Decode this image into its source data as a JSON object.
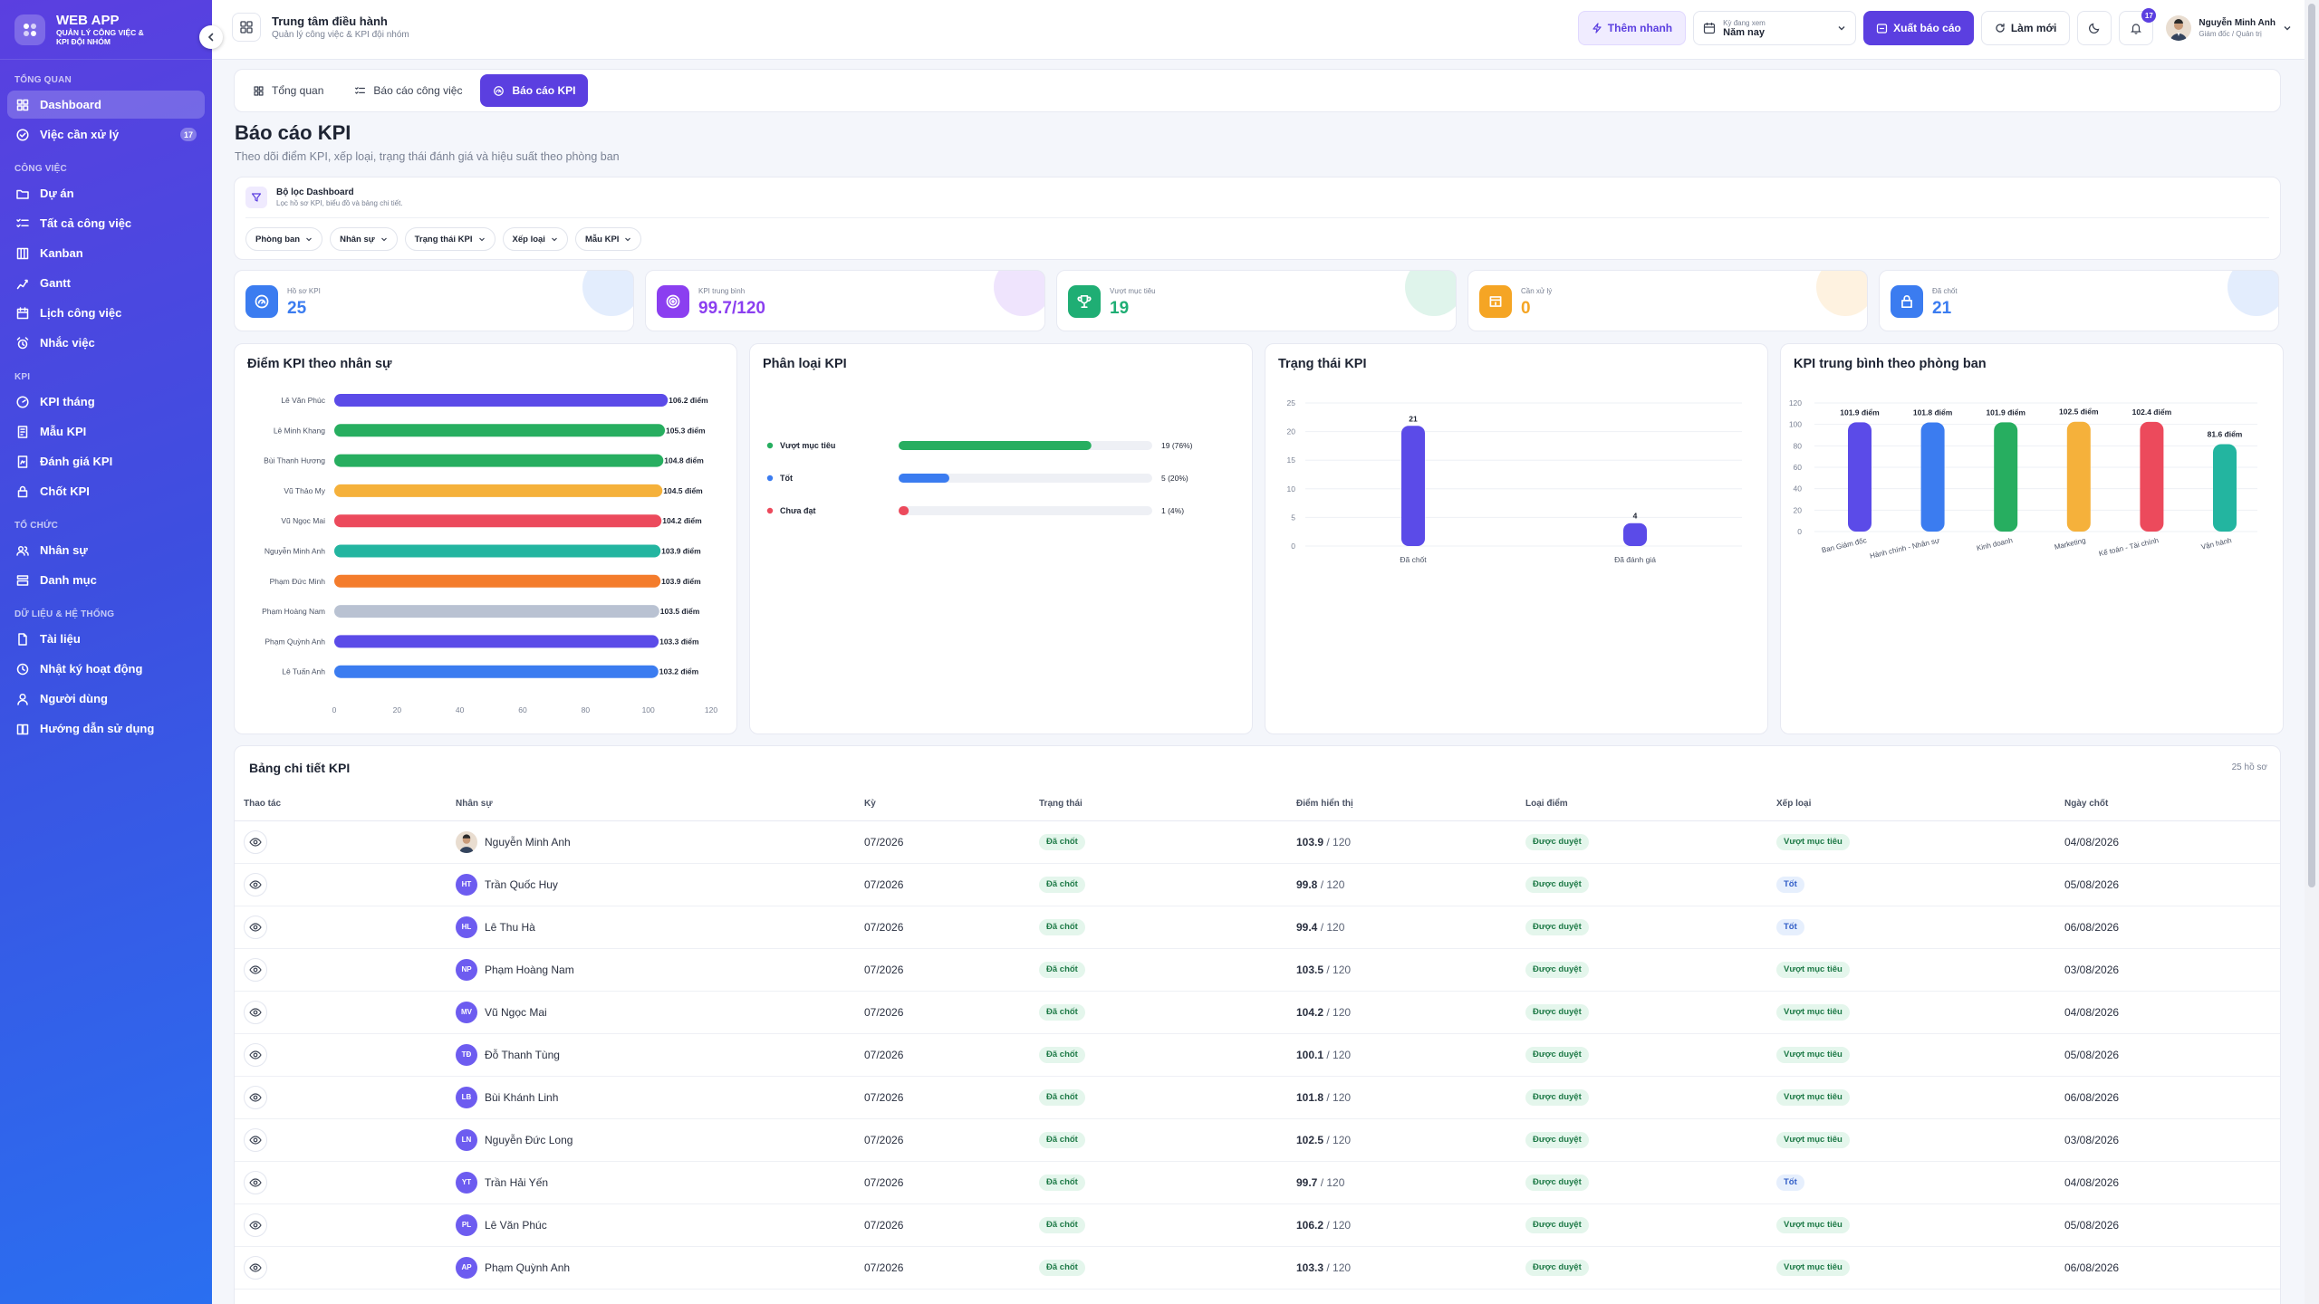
{
  "brand": {
    "title": "WEB APP",
    "subtitle": "QUẢN LÝ CÔNG VIỆC & KPI ĐỘI NHÓM"
  },
  "sidebar": {
    "sections": [
      {
        "title": "TỔNG QUAN",
        "items": [
          {
            "label": "Dashboard",
            "icon": "dashboard-icon",
            "active": true
          },
          {
            "label": "Việc cần xử lý",
            "icon": "check-circle-icon",
            "badge": "17"
          }
        ]
      },
      {
        "title": "CÔNG VIỆC",
        "items": [
          {
            "label": "Dự án",
            "icon": "folder-icon"
          },
          {
            "label": "Tất cả công việc",
            "icon": "list-check-icon"
          },
          {
            "label": "Kanban",
            "icon": "kanban-icon"
          },
          {
            "label": "Gantt",
            "icon": "gantt-icon"
          },
          {
            "label": "Lịch công việc",
            "icon": "calendar-icon"
          },
          {
            "label": "Nhắc việc",
            "icon": "alarm-icon"
          }
        ]
      },
      {
        "title": "KPI",
        "items": [
          {
            "label": "KPI tháng",
            "icon": "gauge-icon"
          },
          {
            "label": "Mẫu KPI",
            "icon": "template-icon"
          },
          {
            "label": "Đánh giá KPI",
            "icon": "rating-icon"
          },
          {
            "label": "Chốt KPI",
            "icon": "lock-icon"
          }
        ]
      },
      {
        "title": "TỔ CHỨC",
        "items": [
          {
            "label": "Nhân sự",
            "icon": "users-icon"
          },
          {
            "label": "Danh mục",
            "icon": "category-icon"
          }
        ]
      },
      {
        "title": "DỮ LIỆU & HỆ THỐNG",
        "items": [
          {
            "label": "Tài liệu",
            "icon": "document-icon"
          },
          {
            "label": "Nhật ký hoạt động",
            "icon": "history-icon"
          },
          {
            "label": "Người dùng",
            "icon": "user-icon"
          },
          {
            "label": "Hướng dẫn sử dụng",
            "icon": "book-icon"
          }
        ]
      }
    ]
  },
  "topbar": {
    "title": "Trung tâm điều hành",
    "subtitle": "Quản lý công việc & KPI đội nhóm",
    "quick_add": "Thêm nhanh",
    "period_label": "Kỳ đang xem",
    "period_value": "Năm nay",
    "export": "Xuất báo cáo",
    "refresh": "Làm mới",
    "notif_count": "17",
    "user_name": "Nguyễn Minh Anh",
    "user_role": "Giám đốc / Quản trị"
  },
  "tabs": [
    {
      "label": "Tổng quan",
      "icon": "overview-icon"
    },
    {
      "label": "Báo cáo công việc",
      "icon": "task-report-icon"
    },
    {
      "label": "Báo cáo KPI",
      "icon": "kpi-report-icon",
      "active": true
    }
  ],
  "page": {
    "title": "Báo cáo KPI",
    "subtitle": "Theo dõi điểm KPI, xếp loại, trạng thái đánh giá và hiệu suất theo phòng ban"
  },
  "filter": {
    "title": "Bộ lọc Dashboard",
    "subtitle": "Lọc hồ sơ KPI, biểu đồ và bảng chi tiết.",
    "chips": [
      "Phòng ban",
      "Nhân sự",
      "Trạng thái KPI",
      "Xếp loại",
      "Mẫu KPI"
    ]
  },
  "stats": [
    {
      "label": "Hồ sơ KPI",
      "value": "25",
      "color": "#3b7cf0",
      "icon": "kpi-file-icon"
    },
    {
      "label": "KPI trung bình",
      "value": "99.7/120",
      "color": "#8b3ff0",
      "icon": "target-icon"
    },
    {
      "label": "Vượt mục tiêu",
      "value": "19",
      "color": "#1fae74",
      "icon": "trophy-icon"
    },
    {
      "label": "Cần xử lý",
      "value": "0",
      "color": "#f5a524",
      "icon": "pending-icon"
    },
    {
      "label": "Đã chốt",
      "value": "21",
      "color": "#3b7cf0",
      "icon": "lock-icon"
    }
  ],
  "panels": {
    "p1": "Điểm KPI theo nhân sự",
    "p2": "Phân loại KPI",
    "p3": "Trạng thái KPI",
    "p4": "KPI trung bình theo phòng ban"
  },
  "chart_data": [
    {
      "type": "bar",
      "orientation": "horizontal",
      "title": "Điểm KPI theo nhân sự",
      "categories": [
        "Lê Văn Phúc",
        "Lê Minh Khang",
        "Bùi Thanh Hương",
        "Vũ Thảo My",
        "Vũ Ngọc Mai",
        "Nguyễn Minh Anh",
        "Phạm Đức Minh",
        "Phạm Hoàng Nam",
        "Phạm Quỳnh Anh",
        "Lê Tuấn Anh"
      ],
      "values": [
        106.2,
        105.3,
        104.8,
        104.5,
        104.2,
        103.9,
        103.9,
        103.5,
        103.3,
        103.2
      ],
      "value_suffix": " điểm",
      "colors": [
        "#5b4be8",
        "#27ae60",
        "#27ae60",
        "#f5b13b",
        "#ec4a5c",
        "#23b5a0",
        "#f47c2c",
        "#b9c2d2",
        "#5b4be8",
        "#3b7cf0"
      ],
      "xlim": [
        0,
        120
      ],
      "xticks": [
        0,
        20,
        40,
        60,
        80,
        100,
        120
      ]
    },
    {
      "type": "bar",
      "orientation": "horizontal",
      "title": "Phân loại KPI",
      "categories": [
        "Vượt mục tiêu",
        "Tốt",
        "Chưa đạt"
      ],
      "values": [
        19,
        5,
        1
      ],
      "labels": [
        "19 (76%)",
        "5 (20%)",
        "1 (4%)"
      ],
      "total": 25,
      "colors": [
        "#27ae60",
        "#3b7cf0",
        "#ec4a5c"
      ]
    },
    {
      "type": "bar",
      "title": "Trạng thái KPI",
      "categories": [
        "Đã chốt",
        "Đã đánh giá"
      ],
      "values": [
        21,
        4
      ],
      "ylim": [
        0,
        25
      ],
      "yticks": [
        0,
        5,
        10,
        15,
        20,
        25
      ],
      "color": "#5b4be8"
    },
    {
      "type": "bar",
      "title": "KPI trung bình theo phòng ban",
      "categories": [
        "Ban Giám đốc",
        "Hành chính - Nhân sự",
        "Kinh doanh",
        "Marketing",
        "Kế toán - Tài chính",
        "Vận hành"
      ],
      "values": [
        101.9,
        101.8,
        101.9,
        102.5,
        102.4,
        81.6
      ],
      "value_suffix": " điểm",
      "colors": [
        "#5b4be8",
        "#3b7cf0",
        "#27ae60",
        "#f5b13b",
        "#ec4a5c",
        "#23b5a0"
      ],
      "ylim": [
        0,
        120
      ],
      "yticks": [
        0,
        20,
        40,
        60,
        80,
        100,
        120
      ]
    }
  ],
  "table": {
    "title": "Bảng chi tiết KPI",
    "count": "25 hồ sơ",
    "headers": [
      "Thao tác",
      "Nhân sự",
      "Kỳ",
      "Trạng thái",
      "Điểm hiển thị",
      "Loại điểm",
      "Xếp loại",
      "Ngày chốt"
    ],
    "rows": [
      {
        "initials": "",
        "name": "Nguyễn Minh Anh",
        "period": "07/2026",
        "status": "Đã chốt",
        "score": "103.9",
        "max": "/ 120",
        "type": "Được duyệt",
        "rank": "Vượt mục tiêu",
        "date": "04/08/2026"
      },
      {
        "initials": "HT",
        "name": "Trần Quốc Huy",
        "period": "07/2026",
        "status": "Đã chốt",
        "score": "99.8",
        "max": "/ 120",
        "type": "Được duyệt",
        "rank": "Tốt",
        "date": "05/08/2026"
      },
      {
        "initials": "HL",
        "name": "Lê Thu Hà",
        "period": "07/2026",
        "status": "Đã chốt",
        "score": "99.4",
        "max": "/ 120",
        "type": "Được duyệt",
        "rank": "Tốt",
        "date": "06/08/2026"
      },
      {
        "initials": "NP",
        "name": "Phạm Hoàng Nam",
        "period": "07/2026",
        "status": "Đã chốt",
        "score": "103.5",
        "max": "/ 120",
        "type": "Được duyệt",
        "rank": "Vượt mục tiêu",
        "date": "03/08/2026"
      },
      {
        "initials": "MV",
        "name": "Vũ Ngọc Mai",
        "period": "07/2026",
        "status": "Đã chốt",
        "score": "104.2",
        "max": "/ 120",
        "type": "Được duyệt",
        "rank": "Vượt mục tiêu",
        "date": "04/08/2026"
      },
      {
        "initials": "TĐ",
        "name": "Đỗ Thanh Tùng",
        "period": "07/2026",
        "status": "Đã chốt",
        "score": "100.1",
        "max": "/ 120",
        "type": "Được duyệt",
        "rank": "Vượt mục tiêu",
        "date": "05/08/2026"
      },
      {
        "initials": "LB",
        "name": "Bùi Khánh Linh",
        "period": "07/2026",
        "status": "Đã chốt",
        "score": "101.8",
        "max": "/ 120",
        "type": "Được duyệt",
        "rank": "Vượt mục tiêu",
        "date": "06/08/2026"
      },
      {
        "initials": "LN",
        "name": "Nguyễn Đức Long",
        "period": "07/2026",
        "status": "Đã chốt",
        "score": "102.5",
        "max": "/ 120",
        "type": "Được duyệt",
        "rank": "Vượt mục tiêu",
        "date": "03/08/2026"
      },
      {
        "initials": "YT",
        "name": "Trần Hải Yến",
        "period": "07/2026",
        "status": "Đã chốt",
        "score": "99.7",
        "max": "/ 120",
        "type": "Được duyệt",
        "rank": "Tốt",
        "date": "04/08/2026"
      },
      {
        "initials": "PL",
        "name": "Lê Văn Phúc",
        "period": "07/2026",
        "status": "Đã chốt",
        "score": "106.2",
        "max": "/ 120",
        "type": "Được duyệt",
        "rank": "Vượt mục tiêu",
        "date": "05/08/2026"
      },
      {
        "initials": "AP",
        "name": "Phạm Quỳnh Anh",
        "period": "07/2026",
        "status": "Đã chốt",
        "score": "103.3",
        "max": "/ 120",
        "type": "Được duyệt",
        "rank": "Vượt mục tiêu",
        "date": "06/08/2026"
      }
    ]
  }
}
